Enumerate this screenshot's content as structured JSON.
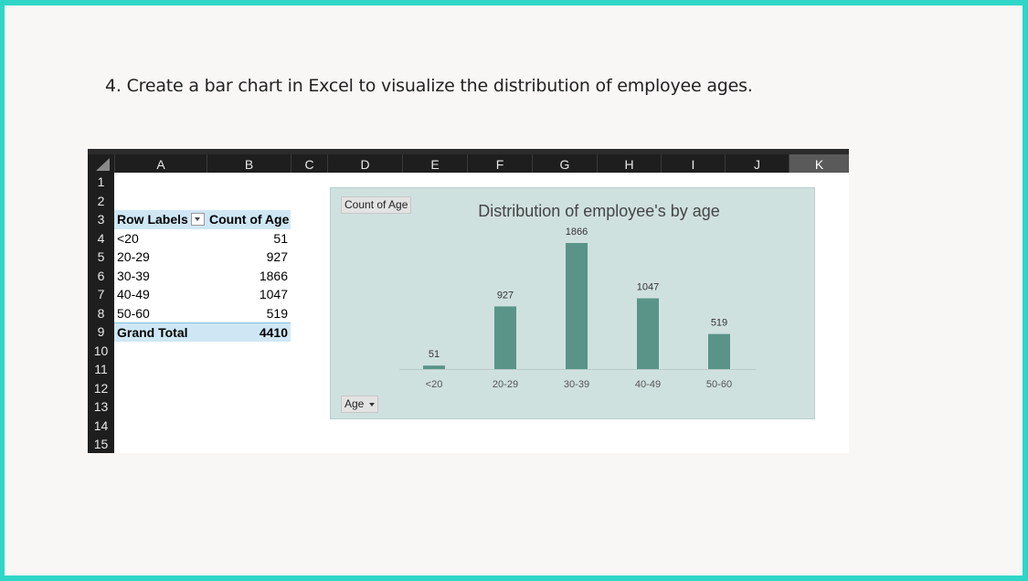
{
  "slide": {
    "heading": "4. Create a bar chart in Excel to visualize the distribution of employee ages."
  },
  "sheet": {
    "columns": [
      "A",
      "B",
      "C",
      "D",
      "E",
      "F",
      "G",
      "H",
      "I",
      "J",
      "K"
    ],
    "selected_column": "K",
    "rows": [
      "1",
      "2",
      "3",
      "4",
      "5",
      "6",
      "7",
      "8",
      "9",
      "10",
      "11",
      "12",
      "13",
      "14",
      "15"
    ],
    "pivot": {
      "header": {
        "label": "Row Labels",
        "value": "Count of Age"
      },
      "rows": [
        {
          "label": "<20",
          "value": "51"
        },
        {
          "label": "20-29",
          "value": "927"
        },
        {
          "label": "30-39",
          "value": "1866"
        },
        {
          "label": "40-49",
          "value": "1047"
        },
        {
          "label": "50-60",
          "value": "519"
        }
      ],
      "total": {
        "label": "Grand Total",
        "value": "4410"
      }
    }
  },
  "chart": {
    "value_field_button": "Count of Age",
    "axis_field_button": "Age",
    "bar_color": "#5a9488",
    "background": "#cfe1df"
  },
  "chart_data": {
    "type": "bar",
    "title": "Distribution of employee's by age",
    "categories": [
      "<20",
      "20-29",
      "30-39",
      "40-49",
      "50-60"
    ],
    "values": [
      51,
      927,
      1866,
      1047,
      519
    ],
    "data_labels": true,
    "ylim": [
      0,
      1866
    ],
    "grid": false,
    "legend": "none",
    "xlabel": "",
    "ylabel": ""
  }
}
